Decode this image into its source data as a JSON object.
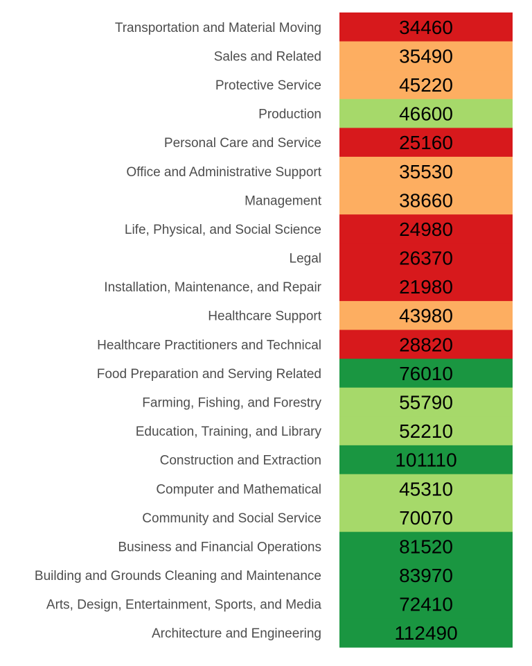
{
  "chart_data": {
    "type": "heatmap",
    "title": "",
    "xlabel": "",
    "ylabel": "",
    "rows": [
      {
        "category": "Transportation and Material Moving",
        "value": 34460,
        "color": "#d7191c"
      },
      {
        "category": "Sales and Related",
        "value": 35490,
        "color": "#fdae61"
      },
      {
        "category": "Protective Service",
        "value": 45220,
        "color": "#fdae61"
      },
      {
        "category": "Production",
        "value": 46600,
        "color": "#a6d96a"
      },
      {
        "category": "Personal Care and Service",
        "value": 25160,
        "color": "#d7191c"
      },
      {
        "category": "Office and Administrative Support",
        "value": 35530,
        "color": "#fdae61"
      },
      {
        "category": "Management",
        "value": 38660,
        "color": "#fdae61"
      },
      {
        "category": "Life, Physical, and Social Science",
        "value": 24980,
        "color": "#d7191c"
      },
      {
        "category": "Legal",
        "value": 26370,
        "color": "#d7191c"
      },
      {
        "category": "Installation, Maintenance, and Repair",
        "value": 21980,
        "color": "#d7191c"
      },
      {
        "category": "Healthcare Support",
        "value": 43980,
        "color": "#fdae61"
      },
      {
        "category": "Healthcare Practitioners and Technical",
        "value": 28820,
        "color": "#d7191c"
      },
      {
        "category": "Food Preparation and Serving Related",
        "value": 76010,
        "color": "#1a9641"
      },
      {
        "category": "Farming, Fishing, and Forestry",
        "value": 55790,
        "color": "#a6d96a"
      },
      {
        "category": "Education, Training, and Library",
        "value": 52210,
        "color": "#a6d96a"
      },
      {
        "category": "Construction and Extraction",
        "value": 101110,
        "color": "#1a9641"
      },
      {
        "category": "Computer and Mathematical",
        "value": 45310,
        "color": "#a6d96a"
      },
      {
        "category": "Community and Social Service",
        "value": 70070,
        "color": "#a6d96a"
      },
      {
        "category": "Business and Financial Operations",
        "value": 81520,
        "color": "#1a9641"
      },
      {
        "category": "Building and Grounds Cleaning and Maintenance",
        "value": 83970,
        "color": "#1a9641"
      },
      {
        "category": "Arts, Design, Entertainment, Sports, and Media",
        "value": 72410,
        "color": "#1a9641"
      },
      {
        "category": "Architecture and Engineering",
        "value": 112490,
        "color": "#1a9641"
      }
    ],
    "legend": "none",
    "grid": false
  }
}
